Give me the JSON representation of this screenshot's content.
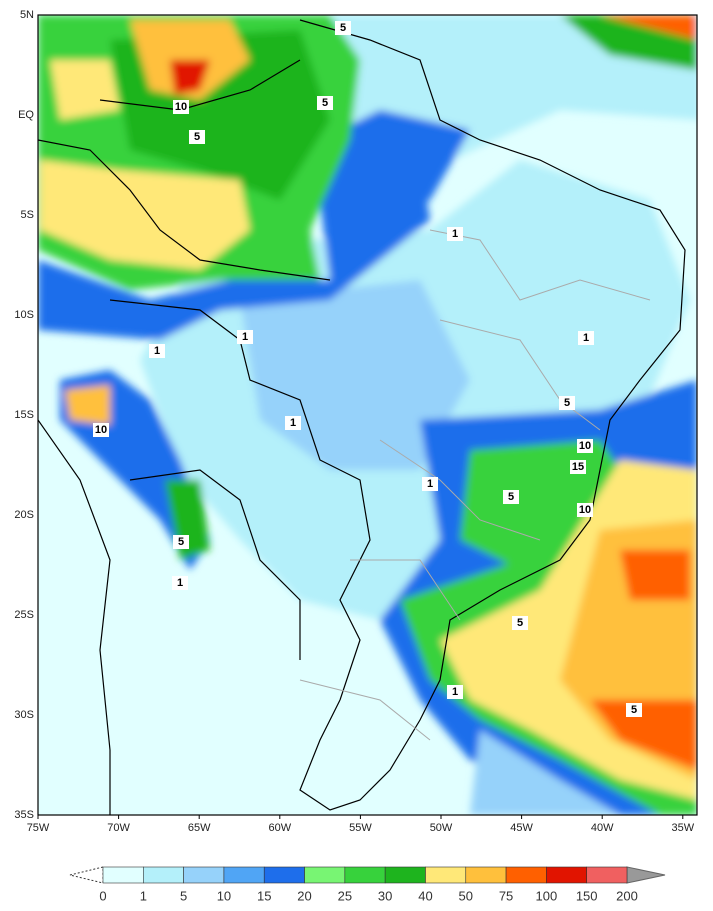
{
  "lon_labels": [
    "75W",
    "70W",
    "65W",
    "60W",
    "55W",
    "50W",
    "45W",
    "40W",
    "35W"
  ],
  "lat_labels": [
    "5N",
    "EQ",
    "5S",
    "10S",
    "15S",
    "20S",
    "25S",
    "30S",
    "35S"
  ],
  "contour_labels": [
    5,
    10,
    5,
    5,
    1,
    1,
    1,
    1,
    10,
    1,
    5,
    10,
    15,
    1,
    5,
    10,
    5,
    1,
    5,
    1,
    5
  ],
  "colorbar": {
    "labels": [
      0,
      1,
      5,
      10,
      15,
      20,
      25,
      30,
      40,
      50,
      75,
      100,
      150,
      200
    ],
    "colors": [
      "#e1ffff",
      "#b4f0fa",
      "#96d2fa",
      "#50a5f5",
      "#1e6eeb",
      "#78f573",
      "#37d23c",
      "#1eb41e",
      "#ffe878",
      "#ffc03c",
      "#ff6000",
      "#e11400",
      "#f06060"
    ]
  }
}
